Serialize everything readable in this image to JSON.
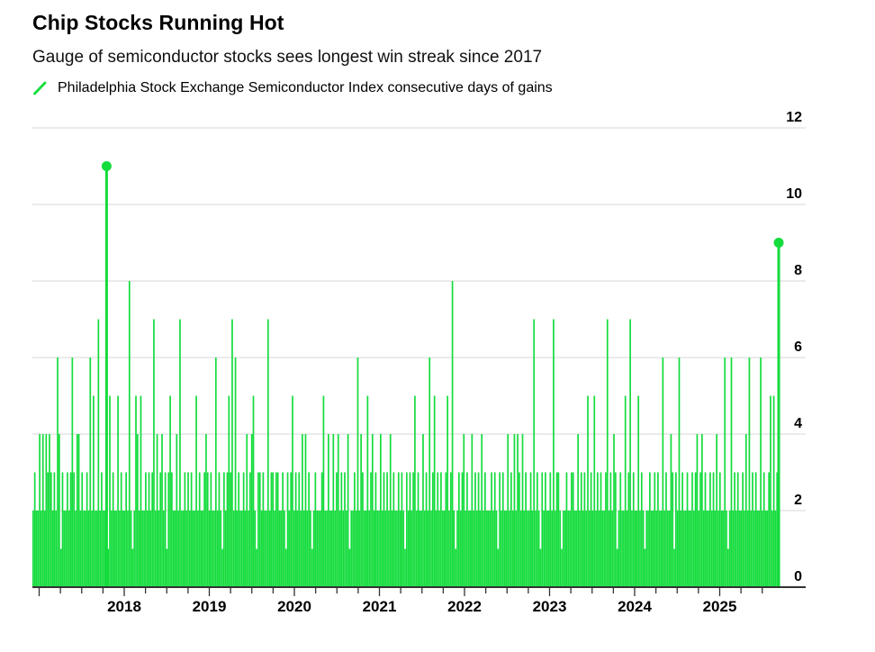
{
  "header": {
    "title": "Chip Stocks Running Hot",
    "subtitle": "Gauge of semiconductor stocks sees longest win streak since 2017",
    "legend": {
      "glyph": "slash-icon",
      "label": "Philadelphia Stock Exchange Semiconductor Index consecutive days of gains"
    }
  },
  "chart_data": {
    "type": "bar",
    "title": "Chip Stocks Running Hot",
    "subtitle": "Gauge of semiconductor stocks sees longest win streak since 2017",
    "series_name": "Philadelphia Stock Exchange Semiconductor Index consecutive days of gains",
    "ylabel": "consecutive days of gains",
    "ylim": [
      0,
      12
    ],
    "y_ticks": [
      0,
      2,
      4,
      6,
      8,
      10,
      12
    ],
    "x_tick_years": [
      2018,
      2019,
      2020,
      2021,
      2022,
      2023,
      2024,
      2025
    ],
    "x_minor_tick_interval_years": 0.25,
    "x_start_year": 2016.93,
    "x_end_year": 2025.72,
    "grid": "horizontal",
    "legend_position": "top-left",
    "points_per_year": 52.18,
    "weekly_max_values": [
      2,
      3,
      2,
      2,
      4,
      2,
      4,
      2,
      4,
      3,
      4,
      3,
      2,
      3,
      2,
      6,
      4,
      1,
      3,
      2,
      2,
      3,
      2,
      3,
      6,
      3,
      2,
      4,
      4,
      2,
      3,
      2,
      2,
      3,
      2,
      6,
      2,
      5,
      2,
      2,
      7,
      2,
      3,
      2,
      2,
      11,
      1,
      5,
      2,
      3,
      2,
      2,
      5,
      2,
      3,
      2,
      2,
      3,
      2,
      8,
      2,
      1,
      2,
      5,
      4,
      2,
      5,
      2,
      2,
      3,
      2,
      3,
      2,
      3,
      7,
      2,
      4,
      2,
      3,
      4,
      2,
      3,
      1,
      3,
      5,
      3,
      2,
      2,
      4,
      2,
      7,
      2,
      2,
      3,
      2,
      3,
      2,
      3,
      2,
      2,
      5,
      2,
      3,
      2,
      2,
      3,
      4,
      3,
      2,
      3,
      2,
      2,
      6,
      2,
      3,
      2,
      1,
      3,
      2,
      3,
      5,
      3,
      7,
      2,
      6,
      2,
      3,
      2,
      2,
      3,
      2,
      4,
      2,
      3,
      4,
      5,
      2,
      1,
      3,
      3,
      2,
      3,
      2,
      2,
      7,
      2,
      3,
      3,
      2,
      3,
      3,
      2,
      2,
      3,
      2,
      1,
      3,
      2,
      3,
      5,
      2,
      3,
      2,
      3,
      2,
      4,
      2,
      4,
      2,
      3,
      2,
      1,
      2,
      3,
      2,
      2,
      2,
      3,
      5,
      2,
      2,
      4,
      2,
      2,
      4,
      2,
      3,
      4,
      2,
      3,
      2,
      3,
      2,
      4,
      1,
      2,
      2,
      3,
      2,
      6,
      2,
      4,
      3,
      2,
      2,
      5,
      2,
      3,
      4,
      2,
      3,
      2,
      2,
      4,
      2,
      3,
      2,
      3,
      2,
      4,
      2,
      3,
      2,
      2,
      3,
      2,
      3,
      2,
      1,
      3,
      2,
      3,
      2,
      3,
      5,
      2,
      3,
      2,
      2,
      4,
      2,
      3,
      2,
      6,
      2,
      3,
      5,
      2,
      3,
      2,
      3,
      2,
      2,
      3,
      5,
      2,
      3,
      8,
      2,
      1,
      2,
      3,
      2,
      3,
      4,
      2,
      3,
      2,
      2,
      4,
      2,
      3,
      2,
      3,
      2,
      4,
      2,
      3,
      2,
      2,
      2,
      3,
      2,
      3,
      2,
      1,
      3,
      2,
      3,
      2,
      2,
      4,
      2,
      3,
      2,
      4,
      2,
      4,
      3,
      2,
      4,
      2,
      3,
      2,
      2,
      3,
      2,
      7,
      2,
      3,
      2,
      1,
      3,
      2,
      3,
      2,
      2,
      3,
      2,
      7,
      2,
      3,
      3,
      2,
      1,
      2,
      2,
      3,
      2,
      2,
      3,
      3,
      2,
      2,
      4,
      2,
      3,
      2,
      3,
      2,
      5,
      2,
      3,
      2,
      5,
      2,
      3,
      2,
      3,
      2,
      2,
      3,
      7,
      2,
      3,
      2,
      4,
      3,
      1,
      2,
      3,
      2,
      2,
      5,
      2,
      3,
      7,
      2,
      3,
      2,
      2,
      5,
      2,
      3,
      2,
      1,
      2,
      2,
      3,
      2,
      2,
      3,
      2,
      3,
      2,
      2,
      6,
      2,
      3,
      2,
      2,
      4,
      3,
      1,
      3,
      2,
      6,
      2,
      3,
      2,
      2,
      3,
      2,
      2,
      3,
      2,
      3,
      4,
      2,
      3,
      4,
      2,
      3,
      2,
      2,
      3,
      2,
      3,
      2,
      4,
      2,
      3,
      2,
      2,
      6,
      2,
      1,
      2,
      6,
      2,
      3,
      2,
      3,
      2,
      2,
      3,
      2,
      4,
      2,
      6,
      2,
      3,
      2,
      3,
      2,
      2,
      6,
      2,
      3,
      2,
      2,
      3,
      5,
      2,
      5,
      2,
      3,
      9
    ],
    "markers": [
      {
        "week_index": 45,
        "value": 11
      },
      {
        "week_index": 457,
        "value": 9
      }
    ],
    "notable_peaks": [
      {
        "year_approx": 2017.8,
        "value": 11,
        "marker_dot": true
      },
      {
        "year_approx": 2018.05,
        "value": 8
      },
      {
        "year_approx": 2021.85,
        "value": 8
      },
      {
        "year_approx": 2022.8,
        "value": 7
      },
      {
        "year_approx": 2023.0,
        "value": 7
      },
      {
        "year_approx": 2023.65,
        "value": 7
      },
      {
        "year_approx": 2023.95,
        "value": 7
      },
      {
        "year_approx": 2025.67,
        "value": 9,
        "marker_dot": true
      }
    ],
    "colors": {
      "bar": "#14dc3c",
      "grid": "#d7d7d7",
      "axis": "#333333",
      "label": "#000000"
    }
  }
}
